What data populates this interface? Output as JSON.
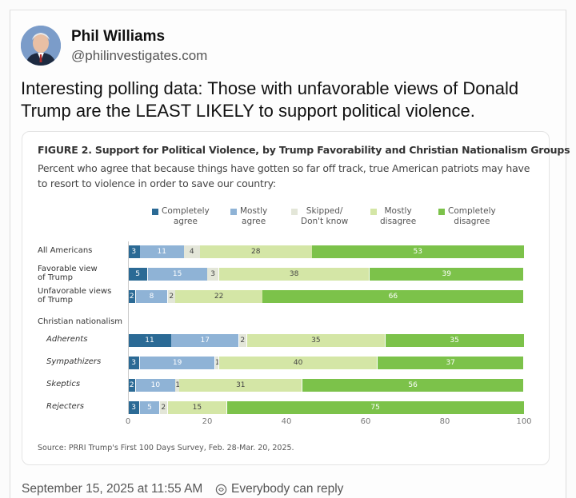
{
  "author": {
    "name": "Phil Williams",
    "handle": "@philinvestigates.com"
  },
  "post": {
    "text": "Interesting polling data: Those with unfavorable views of Donald Trump are the LEAST LIKELY to support political violence."
  },
  "figure": {
    "title": "FIGURE 2. Support for Political Violence, by Trump Favorability and Christian Nationalism Groups",
    "subtitle": "Percent who agree that because things have gotten so far off track, true American patriots may have to resort to violence in order to save our country:",
    "group_label": "Christian nationalism",
    "source": "Source: PRRI Trump's First 100 Days Survey, Feb. 28-Mar. 20, 2025."
  },
  "chart_data": {
    "type": "bar",
    "orientation": "horizontal-stacked",
    "title": "FIGURE 2. Support for Political Violence, by Trump Favorability and Christian Nationalism Groups",
    "categories": [
      "All Americans",
      "Favorable view of Trump",
      "Unfavorable views of Trump",
      "Adherents",
      "Sympathizers",
      "Skeptics",
      "Rejecters"
    ],
    "series": [
      {
        "name": "Completely agree",
        "color": "#2b6a95",
        "values": [
          3,
          5,
          2,
          11,
          3,
          2,
          3
        ]
      },
      {
        "name": "Mostly agree",
        "color": "#8fb3d6",
        "values": [
          11,
          15,
          8,
          17,
          19,
          10,
          5
        ]
      },
      {
        "name": "Skipped/ Don't know",
        "color": "#e3e6d8",
        "values": [
          4,
          3,
          2,
          2,
          1,
          1,
          2
        ]
      },
      {
        "name": "Mostly disagree",
        "color": "#d4e6a6",
        "values": [
          28,
          38,
          22,
          35,
          40,
          31,
          15
        ]
      },
      {
        "name": "Completely disagree",
        "color": "#7cc24a",
        "values": [
          53,
          39,
          66,
          35,
          37,
          56,
          75
        ]
      }
    ],
    "legend": [
      {
        "line1": "Completely",
        "line2": "agree"
      },
      {
        "line1": "Mostly",
        "line2": "agree"
      },
      {
        "line1": "Skipped/",
        "line2": "Don't know"
      },
      {
        "line1": "Mostly",
        "line2": "disagree"
      },
      {
        "line1": "Completely",
        "line2": "disagree"
      }
    ],
    "row_labels": [
      {
        "line1": "All Americans",
        "line2": ""
      },
      {
        "line1": "Favorable view",
        "line2": "of Trump"
      },
      {
        "line1": "Unfavorable views",
        "line2": "of Trump"
      },
      {
        "line1": "Adherents",
        "line2": ""
      },
      {
        "line1": "Sympathizers",
        "line2": ""
      },
      {
        "line1": "Skeptics",
        "line2": ""
      },
      {
        "line1": "Rejecters",
        "line2": ""
      }
    ],
    "xlim": [
      0,
      100
    ],
    "xticks": [
      0,
      20,
      40,
      60,
      80,
      100
    ]
  },
  "footer": {
    "timestamp": "September 15, 2025 at 11:55 AM",
    "reply_setting": "Everybody can reply"
  }
}
